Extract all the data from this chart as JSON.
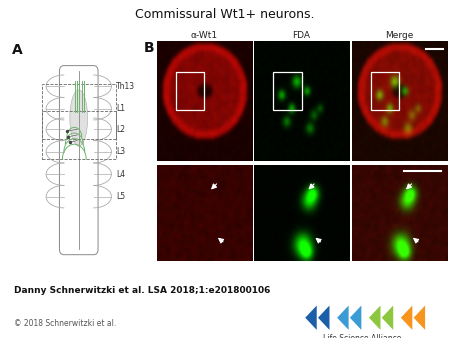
{
  "title": "Commissural Wt1+ neurons.",
  "title_fontsize": 9,
  "bg_color": "#ffffff",
  "author_text": "Danny Schnerwitzki et al. LSA 2018;1:e201800106",
  "author_fontsize": 6.5,
  "copyright_text": "© 2018 Schnerwitzki et al.",
  "copyright_fontsize": 5.5,
  "panel_A_label": "A",
  "panel_B_label": "B",
  "label_fontsize": 10,
  "col_labels": [
    "α-Wt1",
    "FDA",
    "Merge"
  ],
  "col_label_fontsize": 6.5,
  "spine_labels": [
    "Th13",
    "L1",
    "L2",
    "L3",
    "L4",
    "L5"
  ],
  "spine_label_fontsize": 5.5,
  "lsa_blue1": "#1a5fa8",
  "lsa_blue2": "#3a9bd5",
  "lsa_green": "#8dc63f",
  "lsa_orange": "#f7941d"
}
